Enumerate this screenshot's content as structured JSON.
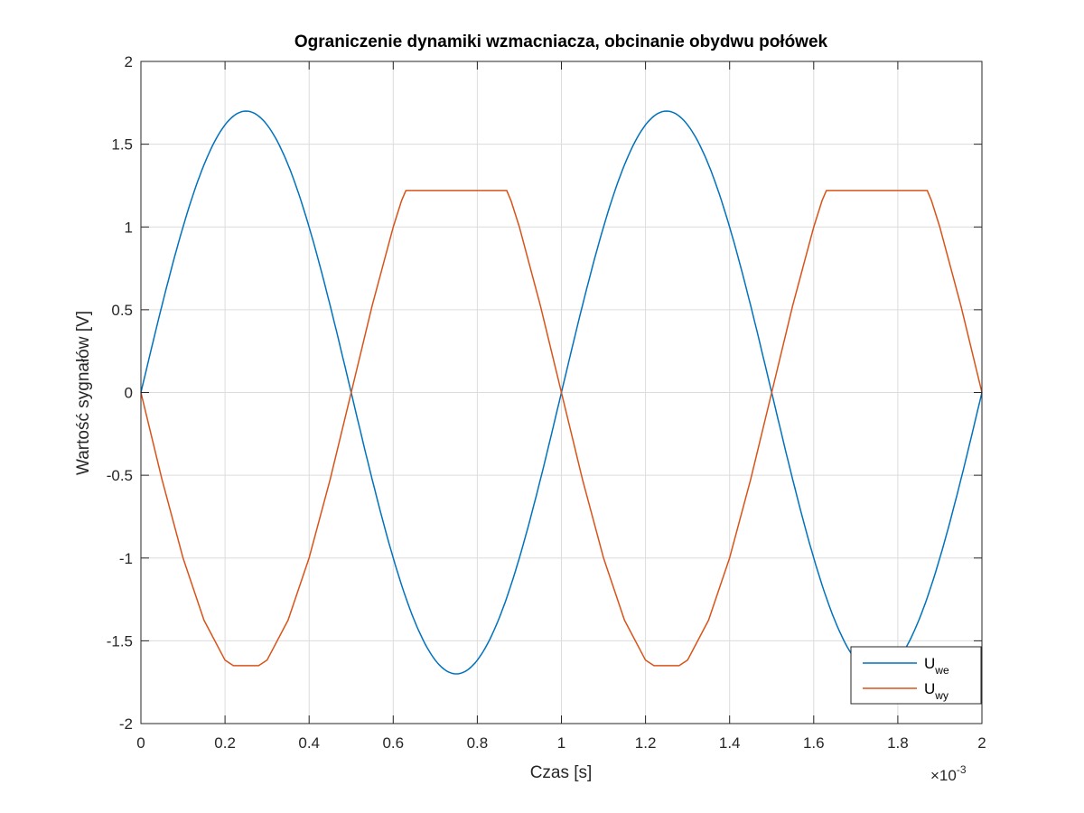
{
  "chart_data": {
    "type": "line",
    "title": "Ograniczenie dynamiki wzmacniacza, obcinanie obydwu połówek",
    "xlabel": "Czas [s]",
    "ylabel": "Wartość sygnałów [V]",
    "x_exponent": {
      "base": "×10",
      "power": "-3"
    },
    "xlim": [
      0,
      2
    ],
    "ylim": [
      -2,
      2
    ],
    "xticks": [
      0,
      0.2,
      0.4,
      0.6,
      0.8,
      1,
      1.2,
      1.4,
      1.6,
      1.8,
      2
    ],
    "xtick_labels": [
      "0",
      "0.2",
      "0.4",
      "0.6",
      "0.8",
      "1",
      "1.2",
      "1.4",
      "1.6",
      "1.8",
      "2"
    ],
    "yticks": [
      2,
      1.5,
      1,
      0.5,
      0,
      -0.5,
      -1,
      -1.5,
      -2
    ],
    "ytick_labels": [
      "2",
      "1.5",
      "1",
      "0.5",
      "0",
      "-0.5",
      "-1",
      "-1.5",
      "-2"
    ],
    "grid": true,
    "legend_position": "bottom-right",
    "series": [
      {
        "name": "U",
        "subscript": "we",
        "color": "#0072BD",
        "shape": "sine",
        "amplitude": 1.7,
        "period": 1,
        "x": [
          0,
          0.25,
          0.5,
          0.75,
          1,
          1.25,
          1.5,
          1.75,
          2
        ],
        "y": [
          0,
          1.7,
          0,
          -1.7,
          0,
          1.7,
          0,
          -1.7,
          0
        ]
      },
      {
        "name": "U",
        "subscript": "wy",
        "color": "#D95319",
        "x": [
          0,
          0.05,
          0.1,
          0.15,
          0.2,
          0.22,
          0.25,
          0.28,
          0.3,
          0.35,
          0.4,
          0.45,
          0.5,
          0.55,
          0.6,
          0.62,
          0.63,
          0.65,
          0.7,
          0.75,
          0.8,
          0.85,
          0.87,
          0.88,
          0.9,
          0.95,
          1,
          1.05,
          1.1,
          1.15,
          1.2,
          1.22,
          1.25,
          1.28,
          1.3,
          1.35,
          1.4,
          1.45,
          1.5,
          1.55,
          1.6,
          1.62,
          1.63,
          1.65,
          1.7,
          1.75,
          1.8,
          1.85,
          1.87,
          1.88,
          1.9,
          1.95,
          2
        ],
        "y": [
          0,
          -0.525,
          -0.999,
          -1.375,
          -1.617,
          -1.65,
          -1.65,
          -1.65,
          -1.617,
          -1.375,
          -0.999,
          -0.525,
          0,
          0.525,
          0.999,
          1.16,
          1.22,
          1.22,
          1.22,
          1.22,
          1.22,
          1.22,
          1.22,
          1.16,
          0.999,
          0.525,
          0,
          -0.525,
          -0.999,
          -1.375,
          -1.617,
          -1.65,
          -1.65,
          -1.65,
          -1.617,
          -1.375,
          -0.999,
          -0.525,
          0,
          0.525,
          0.999,
          1.16,
          1.22,
          1.22,
          1.22,
          1.22,
          1.22,
          1.22,
          1.22,
          1.16,
          0.999,
          0.525,
          0
        ]
      }
    ]
  }
}
